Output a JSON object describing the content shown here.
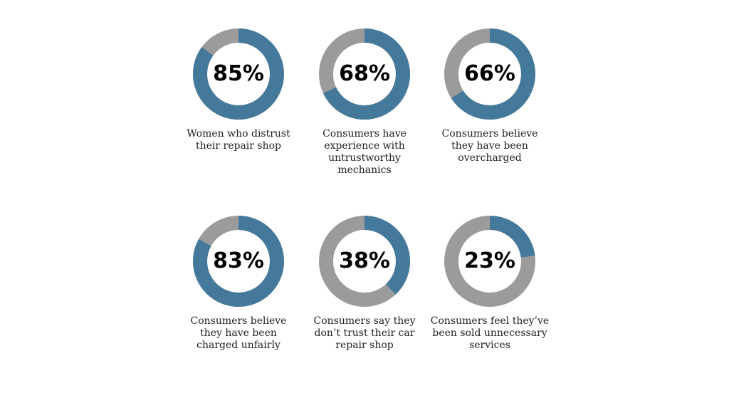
{
  "chart_data": [
    {
      "type": "pie",
      "value": 85,
      "label": "85%",
      "caption": [
        "Women who distrust",
        "their repair shop"
      ]
    },
    {
      "type": "pie",
      "value": 68,
      "label": "68%",
      "caption": [
        "Consumers have",
        "experience with",
        "untrustworthy",
        "mechanics"
      ]
    },
    {
      "type": "pie",
      "value": 66,
      "label": "66%",
      "caption": [
        "Consumers believe",
        "they have been",
        "overcharged"
      ]
    },
    {
      "type": "pie",
      "value": 83,
      "label": "83%",
      "caption": [
        "Consumers believe",
        "they have been",
        "charged unfairly"
      ]
    },
    {
      "type": "pie",
      "value": 38,
      "label": "38%",
      "caption": [
        "Consumers say they",
        "don’t trust their car",
        "repair shop"
      ]
    },
    {
      "type": "pie",
      "value": 23,
      "label": "23%",
      "caption": [
        "Consumers feel they’ve",
        "been sold unnecessary",
        "services"
      ]
    }
  ],
  "colors": {
    "filled": "#44799b",
    "track": "#9b9b9b"
  }
}
